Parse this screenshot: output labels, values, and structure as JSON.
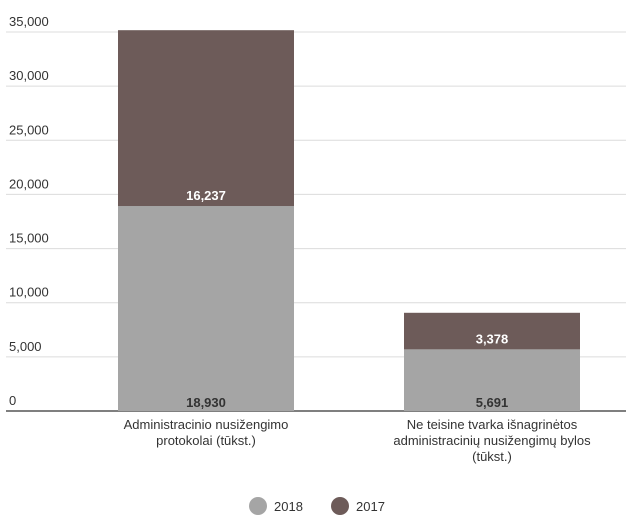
{
  "chart_data": {
    "type": "bar",
    "stacked": true,
    "categories": [
      [
        "Administracinio nusižengimo",
        "protokolai (tūkst.)"
      ],
      [
        "Ne teisine tvarka išnagrinėtos",
        "administracinių nusižengimų bylos",
        "(tūkst.)"
      ]
    ],
    "series": [
      {
        "name": "2018",
        "color": "#a5a5a5",
        "label_color": "#333333",
        "values": [
          18930,
          5691
        ]
      },
      {
        "name": "2017",
        "color": "#6d5b59",
        "label_color": "#ffffff",
        "values": [
          16237,
          3378
        ]
      }
    ],
    "data_labels": [
      [
        "18,930",
        "5,691"
      ],
      [
        "16,237",
        "3,378"
      ]
    ],
    "y_ticks": [
      {
        "value": 0,
        "label": "0"
      },
      {
        "value": 5000,
        "label": "5,000"
      },
      {
        "value": 10000,
        "label": "10,000"
      },
      {
        "value": 15000,
        "label": "15,000"
      },
      {
        "value": 20000,
        "label": "20,000"
      },
      {
        "value": 25000,
        "label": "25,000"
      },
      {
        "value": 30000,
        "label": "30,000"
      },
      {
        "value": 35000,
        "label": "35,000"
      }
    ],
    "ylim": [
      0,
      35000
    ],
    "grid": true,
    "legend": {
      "position": "bottom-center",
      "marker": "circle"
    }
  }
}
